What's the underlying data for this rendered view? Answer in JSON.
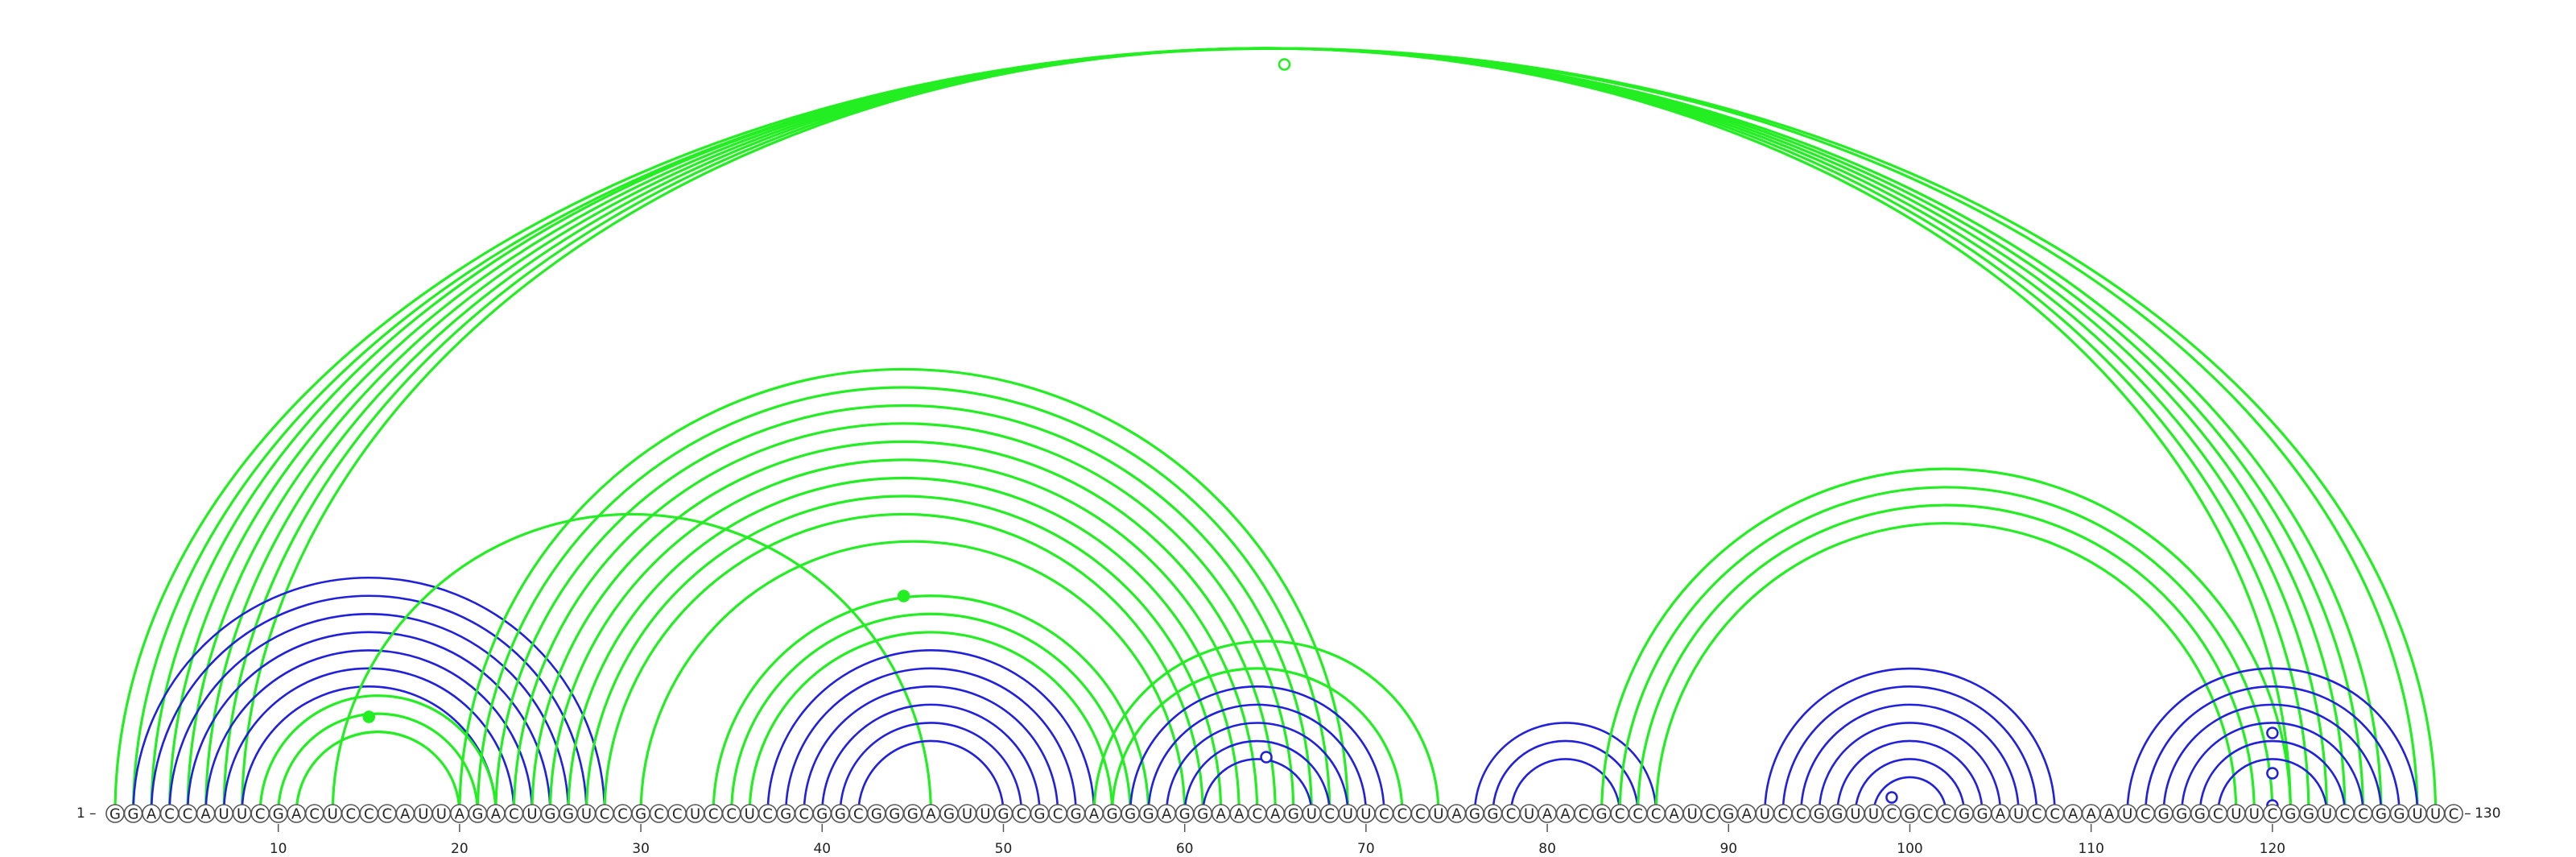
{
  "sequence": "GGACCAUUCGACUCCCAUUAGACUGGUCCGCCUCCUCGCGGCGGGAGUUGCGCGAGGGAGGAACAGUCUUCCCUAGGCUAACGCCCAUCGAUCCGGUUCGCCGGAUCCAAAUCGGGCUUCGGUCCGGUUC",
  "start_label": "1",
  "end_label": "130",
  "ticks": [
    10,
    20,
    30,
    40,
    50,
    60,
    70,
    80,
    90,
    100,
    110,
    120
  ],
  "colors": {
    "secondary": "#2020dd",
    "tertiary": "#22ee22",
    "outline": "#555555"
  },
  "arc_groups": [
    {
      "color": "tertiary",
      "pairs": [
        [
          1,
          129
        ],
        [
          2,
          128
        ],
        [
          3,
          126
        ],
        [
          4,
          125
        ],
        [
          5,
          124
        ],
        [
          6,
          123
        ],
        [
          7,
          122
        ],
        [
          8,
          121
        ]
      ]
    },
    {
      "color": "secondary",
      "pairs": [
        [
          2,
          28
        ],
        [
          3,
          27
        ],
        [
          4,
          26
        ],
        [
          5,
          25
        ],
        [
          6,
          24
        ],
        [
          7,
          23
        ],
        [
          8,
          22
        ]
      ]
    },
    {
      "color": "tertiary",
      "pairs": [
        [
          9,
          22
        ],
        [
          10,
          21
        ],
        [
          11,
          20
        ]
      ]
    },
    {
      "color": "tertiary",
      "pairs": [
        [
          13,
          46
        ]
      ]
    },
    {
      "color": "tertiary",
      "pairs": [
        [
          20,
          69
        ],
        [
          21,
          68
        ],
        [
          22,
          67
        ],
        [
          23,
          66
        ],
        [
          24,
          65
        ],
        [
          25,
          64
        ],
        [
          26,
          63
        ],
        [
          27,
          62
        ],
        [
          28,
          61
        ],
        [
          30,
          60
        ]
      ]
    },
    {
      "color": "tertiary",
      "pairs": [
        [
          34,
          58
        ],
        [
          35,
          57
        ],
        [
          36,
          56
        ]
      ]
    },
    {
      "color": "secondary",
      "pairs": [
        [
          37,
          55
        ],
        [
          38,
          54
        ],
        [
          39,
          53
        ],
        [
          40,
          52
        ],
        [
          41,
          51
        ],
        [
          42,
          50
        ]
      ]
    },
    {
      "color": "tertiary",
      "pairs": [
        [
          55,
          74
        ],
        [
          56,
          72
        ]
      ]
    },
    {
      "color": "secondary",
      "pairs": [
        [
          57,
          71
        ],
        [
          58,
          70
        ],
        [
          59,
          69
        ],
        [
          60,
          68
        ],
        [
          61,
          67
        ]
      ]
    },
    {
      "color": "secondary",
      "pairs": [
        [
          76,
          86
        ],
        [
          77,
          85
        ],
        [
          78,
          84
        ]
      ]
    },
    {
      "color": "tertiary",
      "pairs": [
        [
          83,
          121
        ],
        [
          84,
          120
        ],
        [
          85,
          119
        ],
        [
          86,
          118
        ]
      ]
    },
    {
      "color": "secondary",
      "pairs": [
        [
          92,
          108
        ],
        [
          93,
          107
        ],
        [
          94,
          106
        ],
        [
          95,
          105
        ],
        [
          96,
          104
        ],
        [
          97,
          103
        ],
        [
          98,
          102
        ]
      ]
    },
    {
      "color": "secondary",
      "pairs": [
        [
          112,
          128
        ],
        [
          113,
          127
        ],
        [
          114,
          126
        ],
        [
          115,
          125
        ],
        [
          116,
          124
        ],
        [
          117,
          123
        ]
      ]
    }
  ],
  "markers": [
    {
      "pos": 65.5,
      "height": 0.93,
      "color": "tertiary",
      "filled": false
    },
    {
      "pos": 44.5,
      "height": 0.27,
      "color": "tertiary",
      "filled": true
    },
    {
      "pos": 15.0,
      "height": 0.12,
      "color": "tertiary",
      "filled": true
    },
    {
      "pos": 64.5,
      "height": 0.07,
      "color": "secondary",
      "filled": false
    },
    {
      "pos": 99.0,
      "height": 0.02,
      "color": "secondary",
      "filled": false
    },
    {
      "pos": 120.0,
      "height": 0.1,
      "color": "secondary",
      "filled": false
    },
    {
      "pos": 120.0,
      "height": 0.05,
      "color": "secondary",
      "filled": false
    },
    {
      "pos": 120.0,
      "height": 0.01,
      "color": "secondary",
      "filled": false
    }
  ]
}
